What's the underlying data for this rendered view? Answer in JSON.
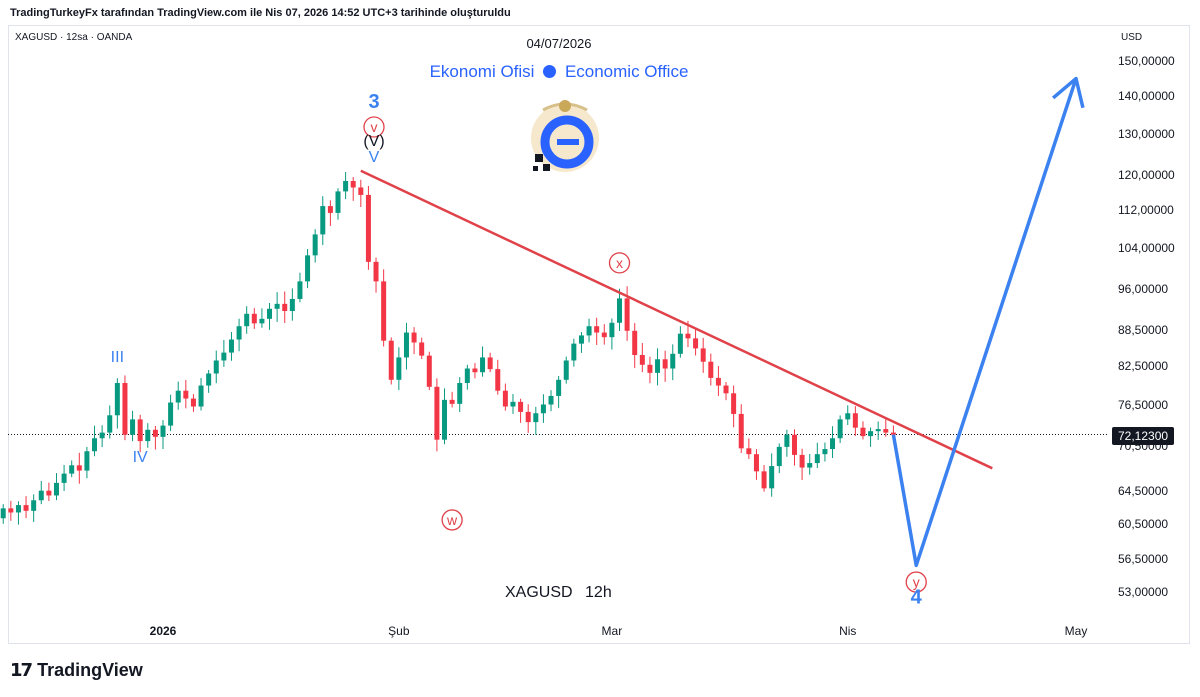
{
  "header": {
    "attribution": "TradingTurkeyFx tarafından TradingView.com ile Nis 07, 2026 14:52 UTC+3 tarihinde oluşturuldu"
  },
  "chart_header": {
    "symbol_info": "XAGUSD · 12sa · OANDA",
    "date": "04/07/2026",
    "brand_left": "Ekonomi Ofisi",
    "brand_right": "Economic Office"
  },
  "axis": {
    "currency": "USD",
    "last_price": "72,12300"
  },
  "symbol_label": "XAGUSD 12h",
  "footer": {
    "logo_text": "TradingView"
  },
  "colors": {
    "up": "#089981",
    "down": "#f23645",
    "trendline": "#e0424a",
    "projection": "#3b82f0",
    "wave_blue": "#3b82f0",
    "wave_red": "#e0424a"
  },
  "chart_data": {
    "type": "candlestick",
    "scale": "log",
    "y_ticks": [
      "150,00000",
      "140,00000",
      "130,00000",
      "120,00000",
      "112,00000",
      "104,00000",
      "96,00000",
      "88,50000",
      "82,50000",
      "76,50000",
      "70,50000",
      "64,50000",
      "60,50000",
      "56,50000",
      "53,00000"
    ],
    "y_tick_values": [
      150,
      140,
      130,
      120,
      112,
      104,
      96,
      88.5,
      82.5,
      76.5,
      70.5,
      64.5,
      60.5,
      56.5,
      53
    ],
    "x_ticks": [
      {
        "label": "2026",
        "t": "2026-01-01",
        "bold": true
      },
      {
        "label": "Şub",
        "t": "2026-02-01",
        "bold": false
      },
      {
        "label": "Mar",
        "t": "2026-03-01",
        "bold": false
      },
      {
        "label": "Nis",
        "t": "2026-04-01",
        "bold": false
      },
      {
        "label": "May",
        "t": "2026-05-01",
        "bold": false
      }
    ],
    "series_close": [
      [
        "2025-12-10",
        61.2
      ],
      [
        "2025-12-11",
        62.4
      ],
      [
        "2025-12-12",
        61.9
      ],
      [
        "2025-12-13",
        62.8
      ],
      [
        "2025-12-14",
        62.1
      ],
      [
        "2025-12-15",
        63.4
      ],
      [
        "2025-12-16",
        64.6
      ],
      [
        "2025-12-17",
        64.0
      ],
      [
        "2025-12-18",
        65.6
      ],
      [
        "2025-12-19",
        66.8
      ],
      [
        "2025-12-20",
        67.9
      ],
      [
        "2025-12-21",
        67.2
      ],
      [
        "2025-12-22",
        69.8
      ],
      [
        "2025-12-23",
        71.6
      ],
      [
        "2025-12-24",
        72.4
      ],
      [
        "2025-12-25",
        74.9
      ],
      [
        "2025-12-26",
        79.8
      ],
      [
        "2025-12-27",
        72.1
      ],
      [
        "2025-12-28",
        74.3
      ],
      [
        "2025-12-29",
        71.2
      ],
      [
        "2025-12-30",
        72.8
      ],
      [
        "2025-12-31",
        71.8
      ],
      [
        "2026-01-01",
        73.4
      ],
      [
        "2026-01-02",
        76.8
      ],
      [
        "2026-01-03",
        78.6
      ],
      [
        "2026-01-04",
        77.4
      ],
      [
        "2026-01-05",
        76.2
      ],
      [
        "2026-01-06",
        79.4
      ],
      [
        "2026-01-07",
        81.3
      ],
      [
        "2026-01-08",
        83.4
      ],
      [
        "2026-01-09",
        84.7
      ],
      [
        "2026-01-10",
        86.9
      ],
      [
        "2026-01-11",
        89.2
      ],
      [
        "2026-01-12",
        91.4
      ],
      [
        "2026-01-13",
        89.7
      ],
      [
        "2026-01-14",
        90.5
      ],
      [
        "2026-01-15",
        92.3
      ],
      [
        "2026-01-16",
        93.2
      ],
      [
        "2026-01-17",
        91.9
      ],
      [
        "2026-01-18",
        94.1
      ],
      [
        "2026-01-19",
        97.4
      ],
      [
        "2026-01-20",
        102.5
      ],
      [
        "2026-01-21",
        106.8
      ],
      [
        "2026-01-22",
        112.9
      ],
      [
        "2026-01-23",
        111.4
      ],
      [
        "2026-01-24",
        116.2
      ],
      [
        "2026-01-25",
        118.6
      ],
      [
        "2026-01-26",
        117.1
      ],
      [
        "2026-01-27",
        115.4
      ],
      [
        "2026-01-28",
        101.2
      ],
      [
        "2026-01-29",
        97.4
      ],
      [
        "2026-01-30",
        86.7
      ],
      [
        "2026-01-31",
        80.3
      ],
      [
        "2026-02-01",
        83.9
      ],
      [
        "2026-02-02",
        88.1
      ],
      [
        "2026-02-03",
        86.4
      ],
      [
        "2026-02-04",
        84.2
      ],
      [
        "2026-02-05",
        79.2
      ],
      [
        "2026-02-06",
        71.4
      ],
      [
        "2026-02-07",
        77.2
      ],
      [
        "2026-02-08",
        76.6
      ],
      [
        "2026-02-09",
        79.8
      ],
      [
        "2026-02-10",
        82.1
      ],
      [
        "2026-02-11",
        81.5
      ],
      [
        "2026-02-12",
        83.9
      ],
      [
        "2026-02-13",
        82.0
      ],
      [
        "2026-02-14",
        78.6
      ],
      [
        "2026-02-15",
        76.2
      ],
      [
        "2026-02-16",
        76.9
      ],
      [
        "2026-02-17",
        75.4
      ],
      [
        "2026-02-18",
        73.9
      ],
      [
        "2026-02-19",
        75.2
      ],
      [
        "2026-02-20",
        76.5
      ],
      [
        "2026-02-21",
        77.8
      ],
      [
        "2026-02-22",
        80.3
      ],
      [
        "2026-02-23",
        83.4
      ],
      [
        "2026-02-24",
        86.2
      ],
      [
        "2026-02-25",
        87.6
      ],
      [
        "2026-02-26",
        89.2
      ],
      [
        "2026-02-27",
        88.1
      ],
      [
        "2026-02-28",
        87.3
      ],
      [
        "2026-03-01",
        89.8
      ],
      [
        "2026-03-02",
        94.2
      ],
      [
        "2026-03-03",
        88.4
      ],
      [
        "2026-03-04",
        84.3
      ],
      [
        "2026-03-05",
        82.7
      ],
      [
        "2026-03-06",
        81.4
      ],
      [
        "2026-03-07",
        83.6
      ],
      [
        "2026-03-08",
        82.1
      ],
      [
        "2026-03-09",
        84.5
      ],
      [
        "2026-03-10",
        87.9
      ],
      [
        "2026-03-11",
        87.1
      ],
      [
        "2026-03-12",
        85.4
      ],
      [
        "2026-03-13",
        83.2
      ],
      [
        "2026-03-14",
        80.6
      ],
      [
        "2026-03-15",
        79.4
      ],
      [
        "2026-03-16",
        78.2
      ],
      [
        "2026-03-17",
        75.1
      ],
      [
        "2026-03-18",
        70.2
      ],
      [
        "2026-03-19",
        69.4
      ],
      [
        "2026-03-20",
        67.1
      ],
      [
        "2026-03-21",
        64.9
      ],
      [
        "2026-03-22",
        67.8
      ],
      [
        "2026-03-23",
        70.4
      ],
      [
        "2026-03-24",
        72.1
      ],
      [
        "2026-03-25",
        69.3
      ],
      [
        "2026-03-26",
        67.6
      ],
      [
        "2026-03-27",
        68.2
      ],
      [
        "2026-03-28",
        69.4
      ],
      [
        "2026-03-29",
        70.1
      ],
      [
        "2026-03-30",
        71.6
      ],
      [
        "2026-03-31",
        74.3
      ],
      [
        "2026-04-01",
        75.2
      ],
      [
        "2026-04-02",
        73.1
      ],
      [
        "2026-04-03",
        71.9
      ],
      [
        "2026-04-04",
        72.6
      ],
      [
        "2026-04-05",
        72.9
      ],
      [
        "2026-04-06",
        72.4
      ],
      [
        "2026-04-07",
        72.1
      ]
    ],
    "trendline": [
      [
        "2026-01-27",
        121
      ],
      [
        "2026-04-20",
        67.5
      ]
    ],
    "projection": [
      [
        "2026-04-07",
        72.1
      ],
      [
        "2026-04-10",
        55.8
      ],
      [
        "2026-05-01",
        145
      ]
    ],
    "wave_labels": [
      {
        "text": "3",
        "color": "blue",
        "circled": false,
        "bold": true,
        "at": [
          "2026-01-27",
          131
        ]
      },
      {
        "text": "v",
        "color": "red",
        "circled": true,
        "bold": false,
        "at": [
          "2026-01-27",
          127
        ]
      },
      {
        "text": "(V)",
        "color": "black",
        "circled": false,
        "bold": false,
        "at": [
          "2026-01-27",
          125
        ]
      },
      {
        "text": "V",
        "color": "blue",
        "circled": false,
        "bold": false,
        "at": [
          "2026-01-27",
          123
        ]
      },
      {
        "text": "III",
        "color": "blue",
        "circled": false,
        "bold": false,
        "at": [
          "2025-12-26",
          84
        ]
      },
      {
        "text": "IV",
        "color": "blue",
        "circled": false,
        "bold": false,
        "at": [
          "2025-12-29",
          69
        ]
      },
      {
        "text": "w",
        "color": "red",
        "circled": true,
        "bold": false,
        "at": [
          "2026-02-08",
          61
        ]
      },
      {
        "text": "x",
        "color": "red",
        "circled": true,
        "bold": false,
        "at": [
          "2026-03-02",
          101
        ]
      },
      {
        "text": "y",
        "color": "red",
        "circled": true,
        "bold": false,
        "at": [
          "2026-04-10",
          54
        ]
      },
      {
        "text": "4",
        "color": "blue",
        "circled": false,
        "bold": true,
        "at": [
          "2026-04-10",
          52.5
        ]
      }
    ],
    "last_price_value": 72.123
  }
}
